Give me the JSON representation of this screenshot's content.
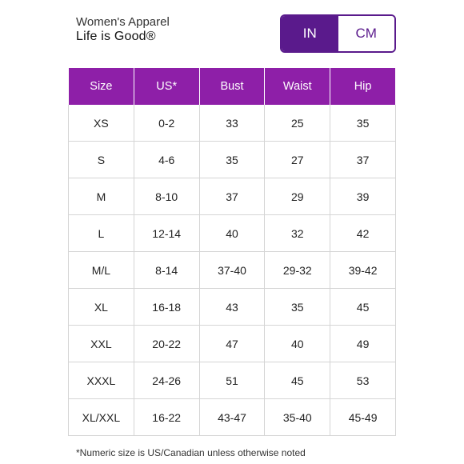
{
  "header": {
    "category": "Women's Apparel",
    "brand": "Life is Good®"
  },
  "unit_toggle": {
    "options": [
      {
        "label": "IN",
        "selected": true
      },
      {
        "label": "CM",
        "selected": false
      }
    ]
  },
  "colors": {
    "accent": "#5a1a8c",
    "table_header": "#8e1fa8"
  },
  "table": {
    "columns": [
      "Size",
      "US*",
      "Bust",
      "Waist",
      "Hip"
    ],
    "rows": [
      [
        "XS",
        "0-2",
        "33",
        "25",
        "35"
      ],
      [
        "S",
        "4-6",
        "35",
        "27",
        "37"
      ],
      [
        "M",
        "8-10",
        "37",
        "29",
        "39"
      ],
      [
        "L",
        "12-14",
        "40",
        "32",
        "42"
      ],
      [
        "M/L",
        "8-14",
        "37-40",
        "29-32",
        "39-42"
      ],
      [
        "XL",
        "16-18",
        "43",
        "35",
        "45"
      ],
      [
        "XXL",
        "20-22",
        "47",
        "40",
        "49"
      ],
      [
        "XXXL",
        "24-26",
        "51",
        "45",
        "53"
      ],
      [
        "XL/XXL",
        "16-22",
        "43-47",
        "35-40",
        "45-49"
      ]
    ]
  },
  "footnote": "*Numeric size is US/Canadian unless otherwise noted"
}
